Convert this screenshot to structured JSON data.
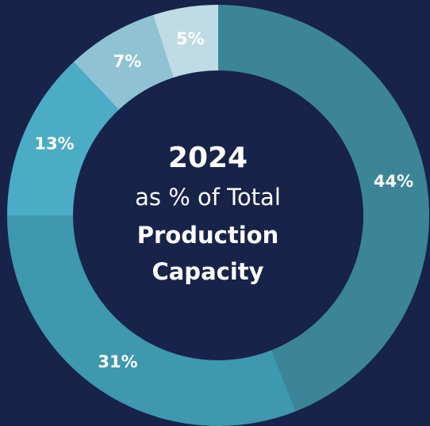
{
  "chart_data": {
    "type": "donut",
    "title": "2024",
    "subtitle": "as % of Total",
    "center_label": [
      "Production",
      "Capacity"
    ],
    "categories": [
      null,
      null,
      null,
      null,
      null
    ],
    "values": [
      44,
      31,
      13,
      7,
      5
    ],
    "value_labels": [
      "44%",
      "31%",
      "13%",
      "7%",
      "5%"
    ],
    "colors": [
      "#3b8597",
      "#3e98ae",
      "#4bacc6",
      "#8fc3d4",
      "#bfdbe6"
    ]
  }
}
